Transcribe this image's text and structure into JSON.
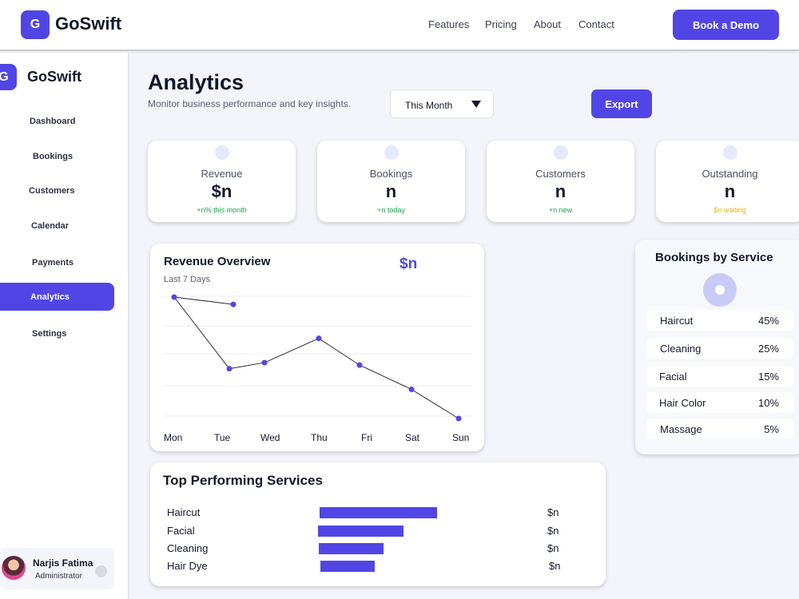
{
  "app": {
    "brand_letter": "G",
    "brand_name": "GoSwift"
  },
  "topnav": {
    "links": [
      "Features",
      "Pricing",
      "About",
      "Contact"
    ],
    "cta_label": "Book a Demo"
  },
  "sidebar": {
    "items": [
      {
        "label": "Dashboard",
        "active": false
      },
      {
        "label": "Bookings",
        "active": false
      },
      {
        "label": "Customers",
        "active": false
      },
      {
        "label": "Calendar",
        "active": false
      },
      {
        "label": "Payments",
        "active": false
      },
      {
        "label": "Analytics",
        "active": true
      },
      {
        "label": "Settings",
        "active": false
      }
    ],
    "user": {
      "name": "Narjis Fatima",
      "role": "Administrator"
    }
  },
  "header": {
    "title": "Analytics",
    "subtitle": "Monitor business performance and key insights.",
    "range_value": "This Month",
    "export_label": "Export"
  },
  "stats": [
    {
      "label": "Revenue",
      "value": "$n",
      "note": "+n% this month",
      "note_color": "#16a34a"
    },
    {
      "label": "Bookings",
      "value": "n",
      "note": "+n today",
      "note_color": "#16a34a"
    },
    {
      "label": "Customers",
      "value": "n",
      "note": "+n new",
      "note_color": "#16a34a"
    },
    {
      "label": "Outstanding",
      "value": "n",
      "note": "$n waiting",
      "note_color": "#eab308"
    }
  ],
  "revenue_overview": {
    "title": "Revenue Overview",
    "total": "$n",
    "subtitle": "Last 7 Days"
  },
  "bookings_by_service": {
    "title": "Bookings by Service",
    "rows": [
      {
        "name": "Haircut",
        "percent": "45%"
      },
      {
        "name": "Cleaning",
        "percent": "25%"
      },
      {
        "name": "Facial",
        "percent": "15%"
      },
      {
        "name": "Hair Color",
        "percent": "10%"
      },
      {
        "name": "Massage",
        "percent": "5%"
      }
    ]
  },
  "top_services": {
    "title": "Top Performing Services",
    "rows": [
      {
        "name": "Haircut",
        "value": "$n",
        "share": 1.0
      },
      {
        "name": "Facial",
        "value": "$n",
        "share": 0.73
      },
      {
        "name": "Cleaning",
        "value": "$n",
        "share": 0.55
      },
      {
        "name": "Hair Dye",
        "value": "$n",
        "share": 0.46
      }
    ]
  },
  "colors": {
    "accent": "#5146e5",
    "positive": "#16a34a",
    "warning": "#eab308"
  },
  "chart_data": {
    "type": "line",
    "categories": [
      "Mon",
      "Tue",
      "Wed",
      "Thu",
      "Fri",
      "Sat",
      "Sun"
    ],
    "series": [
      {
        "values": [
          100,
          41,
          46,
          66,
          44,
          24,
          0
        ]
      }
    ],
    "extra_point": {
      "after": "Mon",
      "value": 94
    },
    "ylim": [
      0,
      100
    ],
    "grid": true
  }
}
